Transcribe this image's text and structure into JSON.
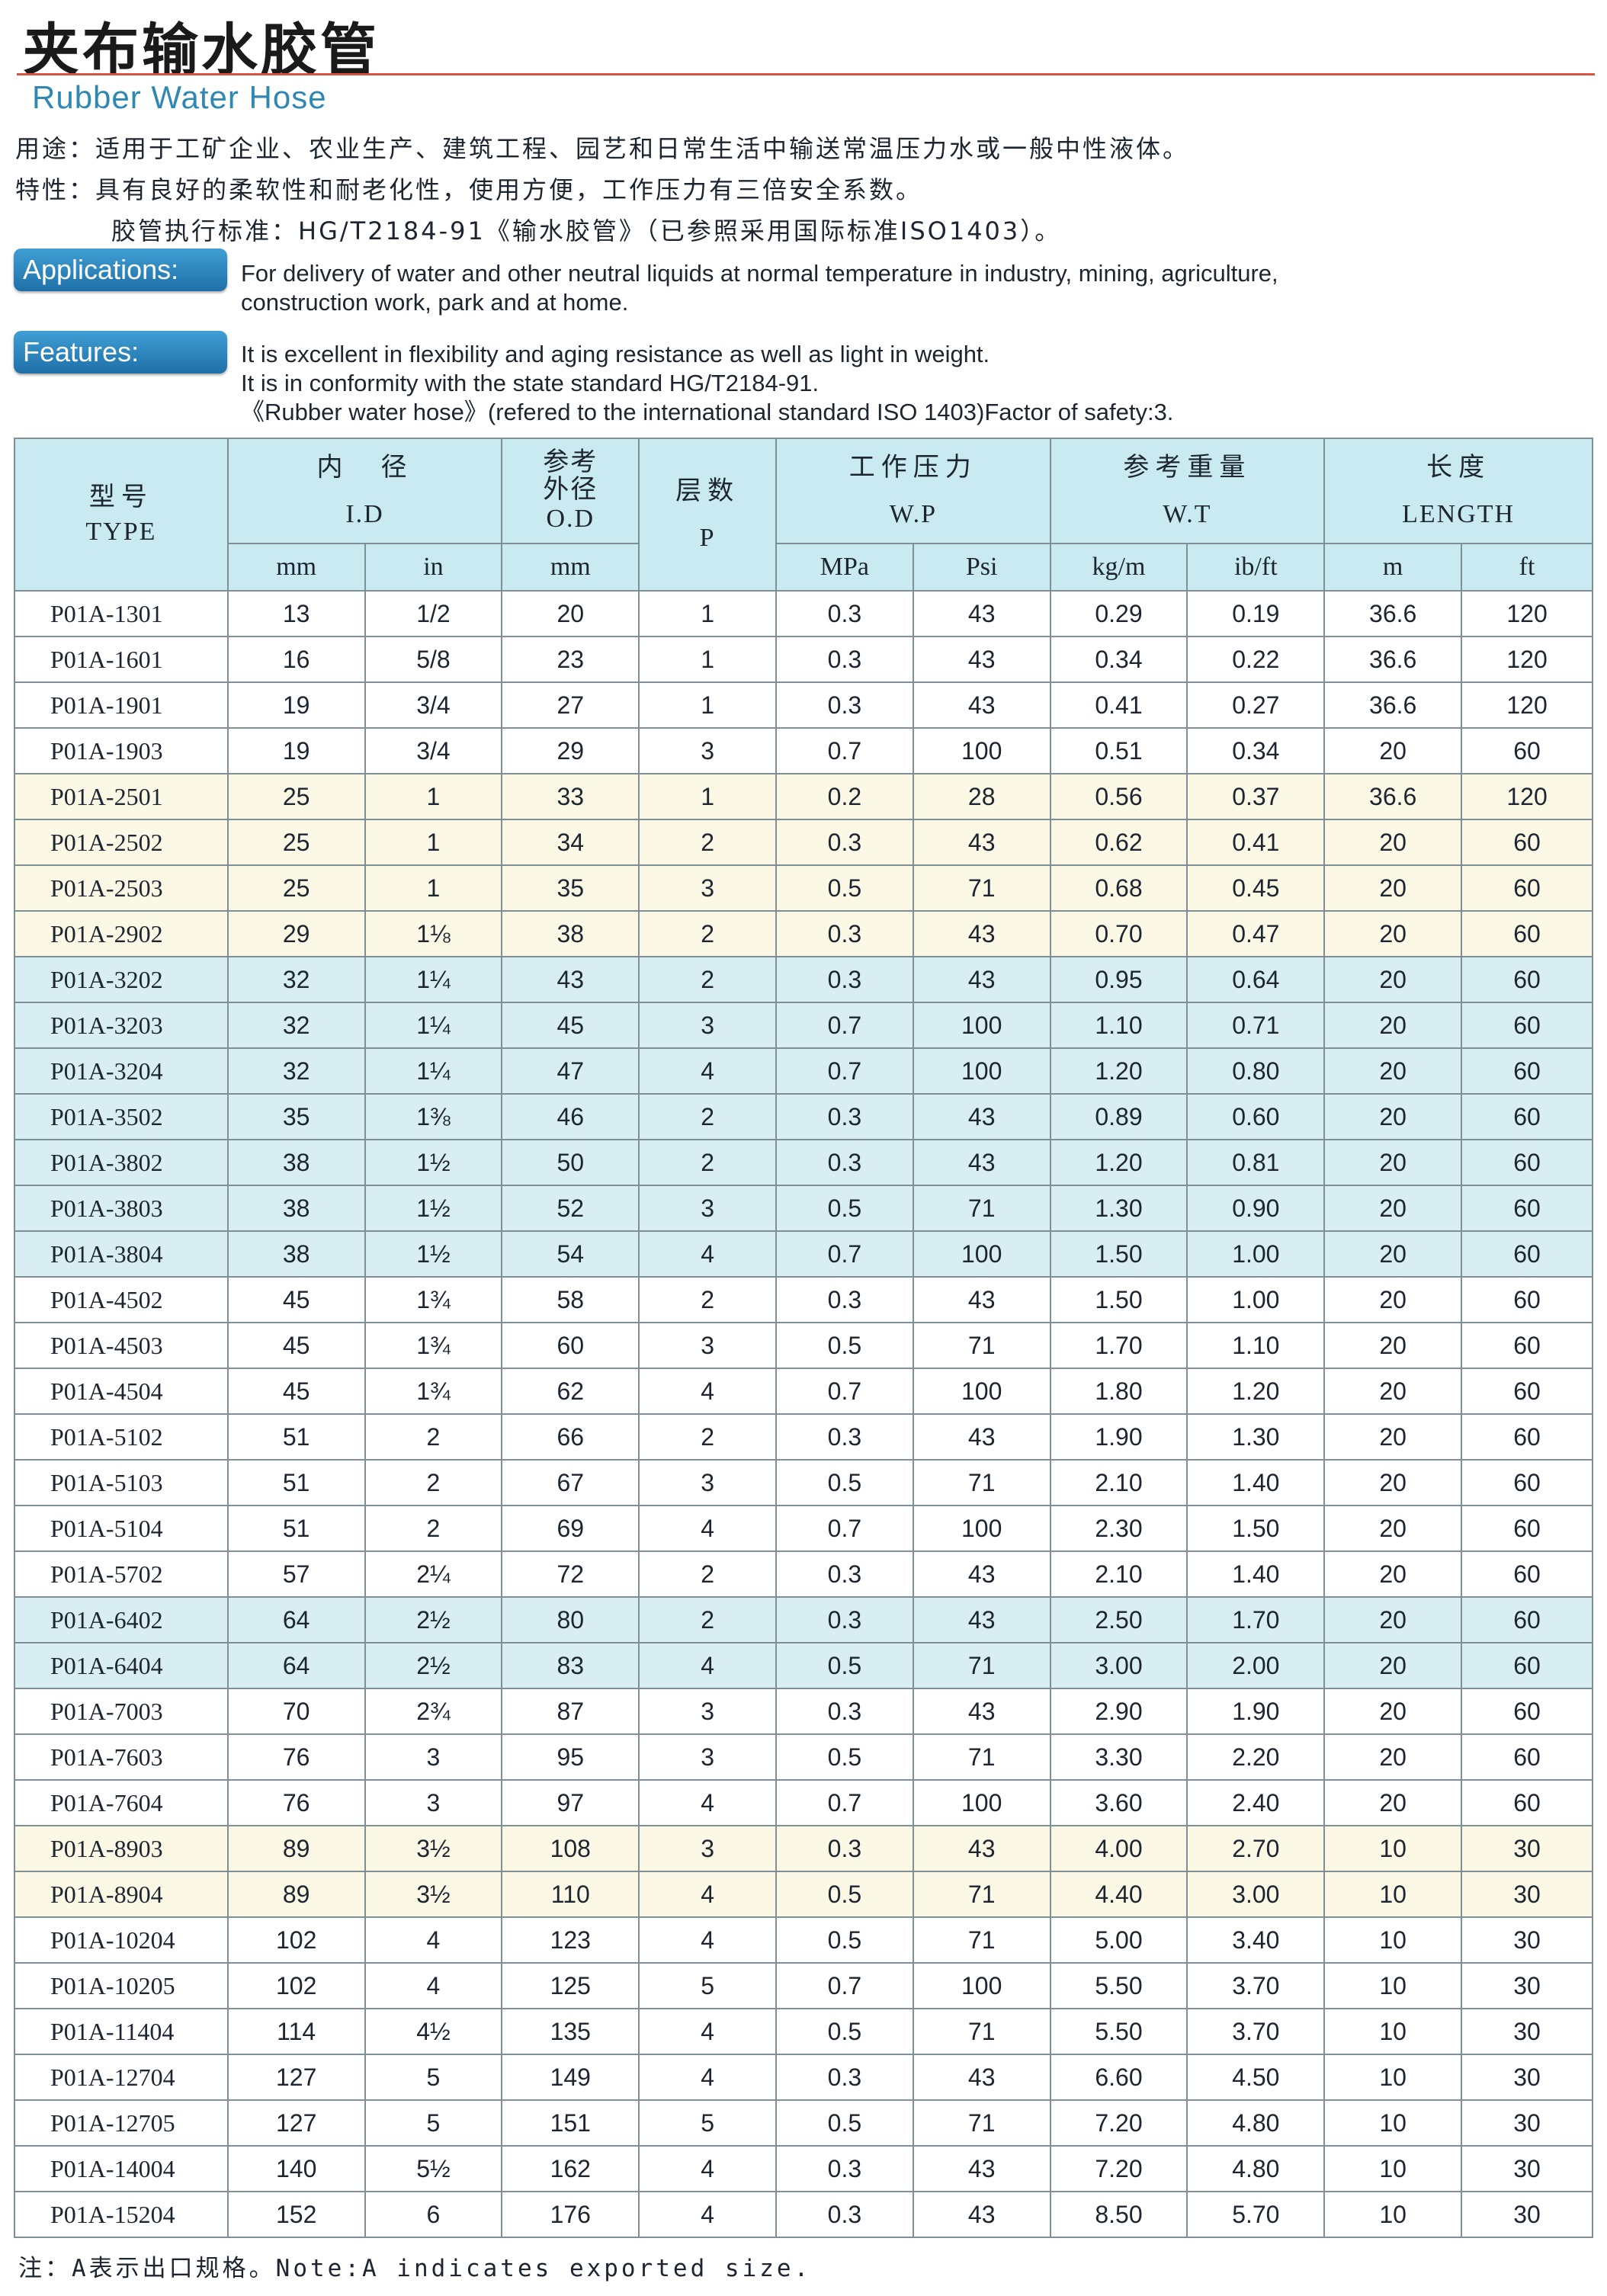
{
  "title_cn": "夹布输水胶管",
  "title_en": "Rubber Water Hose",
  "usage_cn": "用途：适用于工矿企业、农业生产、建筑工程、园艺和日常生活中输送常温压力水或一般中性液体。",
  "features_cn_1": "特性：具有良好的柔软性和耐老化性，使用方便，工作压力有三倍安全系数。",
  "features_cn_2": "胶管执行标准：HG/T2184-91《输水胶管》（已参照采用国际标准ISO1403）。",
  "applications_label": "Applications:",
  "applications_text_1": "For delivery of water and other neutral liquids at normal temperature in industry, mining, agriculture,",
  "applications_text_2": "construction work, park and at home.",
  "features_label": "Features:",
  "features_text_1": "It is excellent in flexibility and aging resistance as well as light in weight.",
  "features_text_2": "It is in conformity with the state standard HG/T2184-91.",
  "features_text_3": "《Rubber water hose》(refered to the international standard ISO 1403)Factor of safety:3.",
  "table": {
    "headers": {
      "type_cn": "型号",
      "type_en": "TYPE",
      "id_cn": "内　径",
      "id_en": "I.D",
      "od_cn": "参考外径",
      "od_en": "O.D",
      "p_cn": "层数",
      "p_en": "P",
      "wp_cn": "工作压力",
      "wp_en": "W.P",
      "wt_cn": "参考重量",
      "wt_en": "W.T",
      "len_cn": "长度",
      "len_en": "LENGTH",
      "units": [
        "mm",
        "in",
        "mm",
        "MPa",
        "Psi",
        "kg/m",
        "ib/ft",
        "m",
        "ft"
      ]
    },
    "rows": [
      {
        "shade": "plain",
        "cells": [
          "P01A-1301",
          "13",
          "1/2",
          "20",
          "1",
          "0.3",
          "43",
          "0.29",
          "0.19",
          "36.6",
          "120"
        ]
      },
      {
        "shade": "plain",
        "cells": [
          "P01A-1601",
          "16",
          "5/8",
          "23",
          "1",
          "0.3",
          "43",
          "0.34",
          "0.22",
          "36.6",
          "120"
        ]
      },
      {
        "shade": "plain",
        "cells": [
          "P01A-1901",
          "19",
          "3/4",
          "27",
          "1",
          "0.3",
          "43",
          "0.41",
          "0.27",
          "36.6",
          "120"
        ]
      },
      {
        "shade": "plain",
        "cells": [
          "P01A-1903",
          "19",
          "3/4",
          "29",
          "3",
          "0.7",
          "100",
          "0.51",
          "0.34",
          "20",
          "60"
        ]
      },
      {
        "shade": "warm",
        "cells": [
          "P01A-2501",
          "25",
          "1",
          "33",
          "1",
          "0.2",
          "28",
          "0.56",
          "0.37",
          "36.6",
          "120"
        ]
      },
      {
        "shade": "warm",
        "cells": [
          "P01A-2502",
          "25",
          "1",
          "34",
          "2",
          "0.3",
          "43",
          "0.62",
          "0.41",
          "20",
          "60"
        ]
      },
      {
        "shade": "warm",
        "cells": [
          "P01A-2503",
          "25",
          "1",
          "35",
          "3",
          "0.5",
          "71",
          "0.68",
          "0.45",
          "20",
          "60"
        ]
      },
      {
        "shade": "warm",
        "cells": [
          "P01A-2902",
          "29",
          "1⅛",
          "38",
          "2",
          "0.3",
          "43",
          "0.70",
          "0.47",
          "20",
          "60"
        ]
      },
      {
        "shade": "cool",
        "cells": [
          "P01A-3202",
          "32",
          "1¼",
          "43",
          "2",
          "0.3",
          "43",
          "0.95",
          "0.64",
          "20",
          "60"
        ]
      },
      {
        "shade": "cool",
        "cells": [
          "P01A-3203",
          "32",
          "1¼",
          "45",
          "3",
          "0.7",
          "100",
          "1.10",
          "0.71",
          "20",
          "60"
        ]
      },
      {
        "shade": "cool",
        "cells": [
          "P01A-3204",
          "32",
          "1¼",
          "47",
          "4",
          "0.7",
          "100",
          "1.20",
          "0.80",
          "20",
          "60"
        ]
      },
      {
        "shade": "cool",
        "cells": [
          "P01A-3502",
          "35",
          "1⅜",
          "46",
          "2",
          "0.3",
          "43",
          "0.89",
          "0.60",
          "20",
          "60"
        ]
      },
      {
        "shade": "cool",
        "cells": [
          "P01A-3802",
          "38",
          "1½",
          "50",
          "2",
          "0.3",
          "43",
          "1.20",
          "0.81",
          "20",
          "60"
        ]
      },
      {
        "shade": "cool",
        "cells": [
          "P01A-3803",
          "38",
          "1½",
          "52",
          "3",
          "0.5",
          "71",
          "1.30",
          "0.90",
          "20",
          "60"
        ]
      },
      {
        "shade": "cool",
        "cells": [
          "P01A-3804",
          "38",
          "1½",
          "54",
          "4",
          "0.7",
          "100",
          "1.50",
          "1.00",
          "20",
          "60"
        ]
      },
      {
        "shade": "plain",
        "cells": [
          "P01A-4502",
          "45",
          "1¾",
          "58",
          "2",
          "0.3",
          "43",
          "1.50",
          "1.00",
          "20",
          "60"
        ]
      },
      {
        "shade": "plain",
        "cells": [
          "P01A-4503",
          "45",
          "1¾",
          "60",
          "3",
          "0.5",
          "71",
          "1.70",
          "1.10",
          "20",
          "60"
        ]
      },
      {
        "shade": "plain",
        "cells": [
          "P01A-4504",
          "45",
          "1¾",
          "62",
          "4",
          "0.7",
          "100",
          "1.80",
          "1.20",
          "20",
          "60"
        ]
      },
      {
        "shade": "plain",
        "cells": [
          "P01A-5102",
          "51",
          "2",
          "66",
          "2",
          "0.3",
          "43",
          "1.90",
          "1.30",
          "20",
          "60"
        ]
      },
      {
        "shade": "plain",
        "cells": [
          "P01A-5103",
          "51",
          "2",
          "67",
          "3",
          "0.5",
          "71",
          "2.10",
          "1.40",
          "20",
          "60"
        ]
      },
      {
        "shade": "plain",
        "cells": [
          "P01A-5104",
          "51",
          "2",
          "69",
          "4",
          "0.7",
          "100",
          "2.30",
          "1.50",
          "20",
          "60"
        ]
      },
      {
        "shade": "plain",
        "cells": [
          "P01A-5702",
          "57",
          "2¼",
          "72",
          "2",
          "0.3",
          "43",
          "2.10",
          "1.40",
          "20",
          "60"
        ]
      },
      {
        "shade": "cool",
        "cells": [
          "P01A-6402",
          "64",
          "2½",
          "80",
          "2",
          "0.3",
          "43",
          "2.50",
          "1.70",
          "20",
          "60"
        ]
      },
      {
        "shade": "cool",
        "cells": [
          "P01A-6404",
          "64",
          "2½",
          "83",
          "4",
          "0.5",
          "71",
          "3.00",
          "2.00",
          "20",
          "60"
        ]
      },
      {
        "shade": "plain",
        "cells": [
          "P01A-7003",
          "70",
          "2¾",
          "87",
          "3",
          "0.3",
          "43",
          "2.90",
          "1.90",
          "20",
          "60"
        ]
      },
      {
        "shade": "plain",
        "cells": [
          "P01A-7603",
          "76",
          "3",
          "95",
          "3",
          "0.5",
          "71",
          "3.30",
          "2.20",
          "20",
          "60"
        ]
      },
      {
        "shade": "plain",
        "cells": [
          "P01A-7604",
          "76",
          "3",
          "97",
          "4",
          "0.7",
          "100",
          "3.60",
          "2.40",
          "20",
          "60"
        ]
      },
      {
        "shade": "warm",
        "cells": [
          "P01A-8903",
          "89",
          "3½",
          "108",
          "3",
          "0.3",
          "43",
          "4.00",
          "2.70",
          "10",
          "30"
        ]
      },
      {
        "shade": "warm",
        "cells": [
          "P01A-8904",
          "89",
          "3½",
          "110",
          "4",
          "0.5",
          "71",
          "4.40",
          "3.00",
          "10",
          "30"
        ]
      },
      {
        "shade": "plain",
        "cells": [
          "P01A-10204",
          "102",
          "4",
          "123",
          "4",
          "0.5",
          "71",
          "5.00",
          "3.40",
          "10",
          "30"
        ]
      },
      {
        "shade": "plain",
        "cells": [
          "P01A-10205",
          "102",
          "4",
          "125",
          "5",
          "0.7",
          "100",
          "5.50",
          "3.70",
          "10",
          "30"
        ]
      },
      {
        "shade": "plain",
        "cells": [
          "P01A-11404",
          "114",
          "4½",
          "135",
          "4",
          "0.5",
          "71",
          "5.50",
          "3.70",
          "10",
          "30"
        ]
      },
      {
        "shade": "plain",
        "cells": [
          "P01A-12704",
          "127",
          "5",
          "149",
          "4",
          "0.3",
          "43",
          "6.60",
          "4.50",
          "10",
          "30"
        ]
      },
      {
        "shade": "plain",
        "cells": [
          "P01A-12705",
          "127",
          "5",
          "151",
          "5",
          "0.5",
          "71",
          "7.20",
          "4.80",
          "10",
          "30"
        ]
      },
      {
        "shade": "plain",
        "cells": [
          "P01A-14004",
          "140",
          "5½",
          "162",
          "4",
          "0.3",
          "43",
          "7.20",
          "4.80",
          "10",
          "30"
        ]
      },
      {
        "shade": "plain",
        "cells": [
          "P01A-15204",
          "152",
          "6",
          "176",
          "4",
          "0.3",
          "43",
          "8.50",
          "5.70",
          "10",
          "30"
        ]
      }
    ]
  },
  "note": "注：A表示出口规格。Note:A indicates exported size."
}
